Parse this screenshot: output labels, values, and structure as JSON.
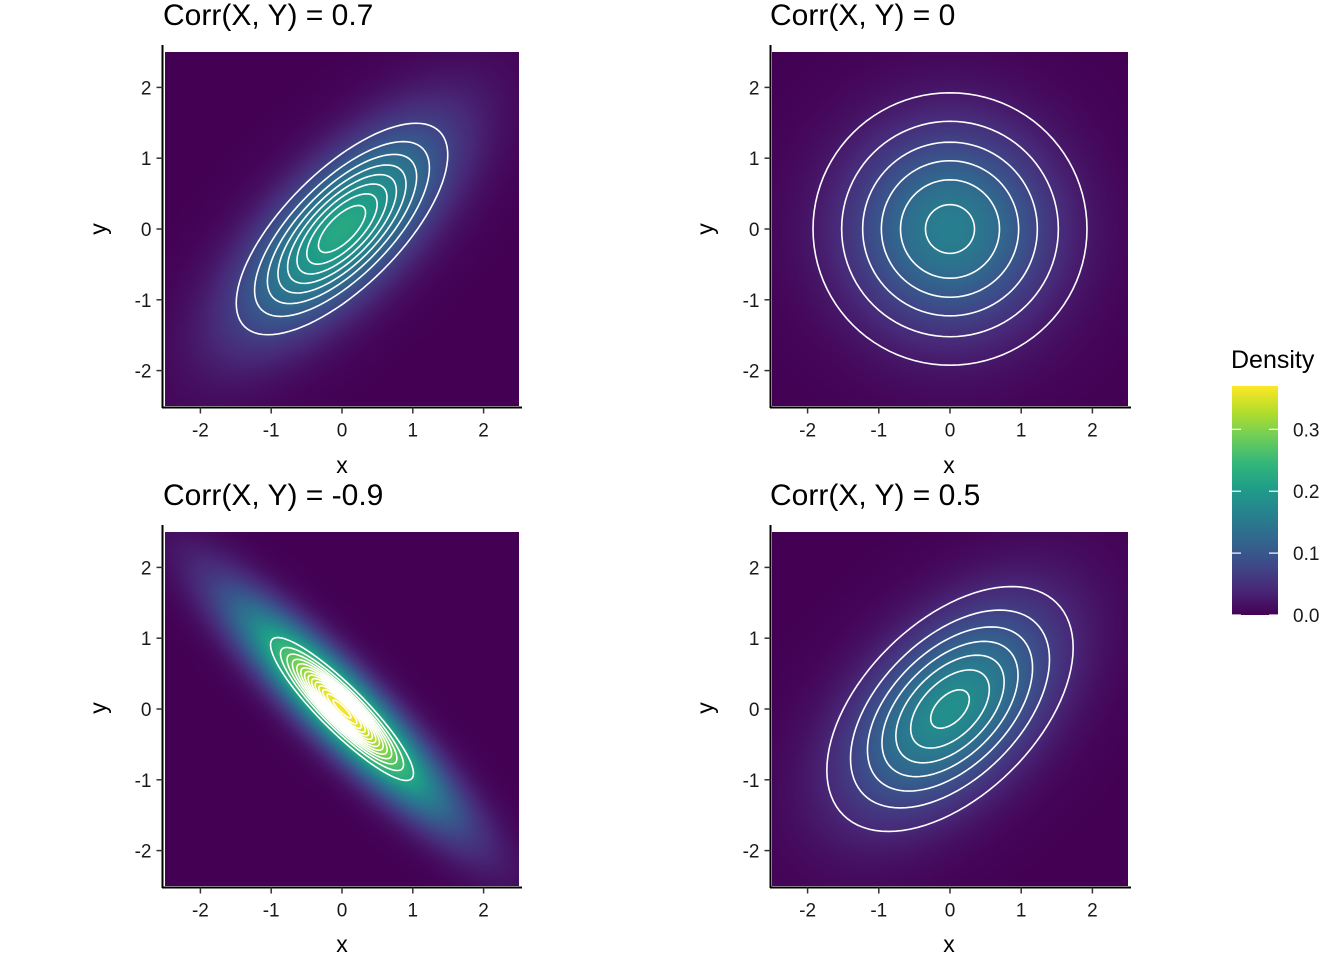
{
  "chart_data": [
    {
      "type": "heatmap",
      "title": "Corr(X, Y) = 0.7",
      "correlation": 0.7,
      "xlabel": "x",
      "ylabel": "y",
      "xlim": [
        -2.5,
        2.5
      ],
      "ylim": [
        -2.5,
        2.5
      ],
      "x_ticks": [
        -2,
        -1,
        0,
        1,
        2
      ],
      "y_ticks": [
        -2,
        -1,
        0,
        1,
        2
      ],
      "x_tick_labels": [
        "-2",
        "-1",
        "0",
        "1",
        "2"
      ],
      "y_tick_labels": [
        "-2",
        "-1",
        "0",
        "1",
        "2"
      ],
      "contour_color": "#ffffff"
    },
    {
      "type": "heatmap",
      "title": "Corr(X, Y) = 0",
      "correlation": 0,
      "xlabel": "x",
      "ylabel": "y",
      "xlim": [
        -2.5,
        2.5
      ],
      "ylim": [
        -2.5,
        2.5
      ],
      "x_ticks": [
        -2,
        -1,
        0,
        1,
        2
      ],
      "y_ticks": [
        -2,
        -1,
        0,
        1,
        2
      ],
      "x_tick_labels": [
        "-2",
        "-1",
        "0",
        "1",
        "2"
      ],
      "y_tick_labels": [
        "-2",
        "-1",
        "0",
        "1",
        "2"
      ],
      "contour_color": "#ffffff"
    },
    {
      "type": "heatmap",
      "title": "Corr(X, Y) = -0.9",
      "correlation": -0.9,
      "xlabel": "x",
      "ylabel": "y",
      "xlim": [
        -2.5,
        2.5
      ],
      "ylim": [
        -2.5,
        2.5
      ],
      "x_ticks": [
        -2,
        -1,
        0,
        1,
        2
      ],
      "y_ticks": [
        -2,
        -1,
        0,
        1,
        2
      ],
      "x_tick_labels": [
        "-2",
        "-1",
        "0",
        "1",
        "2"
      ],
      "y_tick_labels": [
        "-2",
        "-1",
        "0",
        "1",
        "2"
      ],
      "contour_color": "#ffffff"
    },
    {
      "type": "heatmap",
      "title": "Corr(X, Y) = 0.5",
      "correlation": 0.5,
      "xlabel": "x",
      "ylabel": "y",
      "xlim": [
        -2.5,
        2.5
      ],
      "ylim": [
        -2.5,
        2.5
      ],
      "x_ticks": [
        -2,
        -1,
        0,
        1,
        2
      ],
      "y_ticks": [
        -2,
        -1,
        0,
        1,
        2
      ],
      "x_tick_labels": [
        "-2",
        "-1",
        "0",
        "1",
        "2"
      ],
      "y_tick_labels": [
        "-2",
        "-1",
        "0",
        "1",
        "2"
      ],
      "contour_color": "#ffffff"
    }
  ],
  "legend": {
    "title": "Density",
    "position": "right",
    "color_scale": "viridis",
    "limits": [
      0,
      0.37
    ],
    "breaks": [
      0,
      0.1,
      0.2,
      0.3
    ],
    "break_labels": [
      "0.0",
      "0.1",
      "0.2",
      "0.3"
    ],
    "colors": [
      "#440154",
      "#482878",
      "#3e4a89",
      "#31688e",
      "#26828e",
      "#1f9e89",
      "#35b779",
      "#6ece58",
      "#b5de2b",
      "#fde725"
    ]
  }
}
